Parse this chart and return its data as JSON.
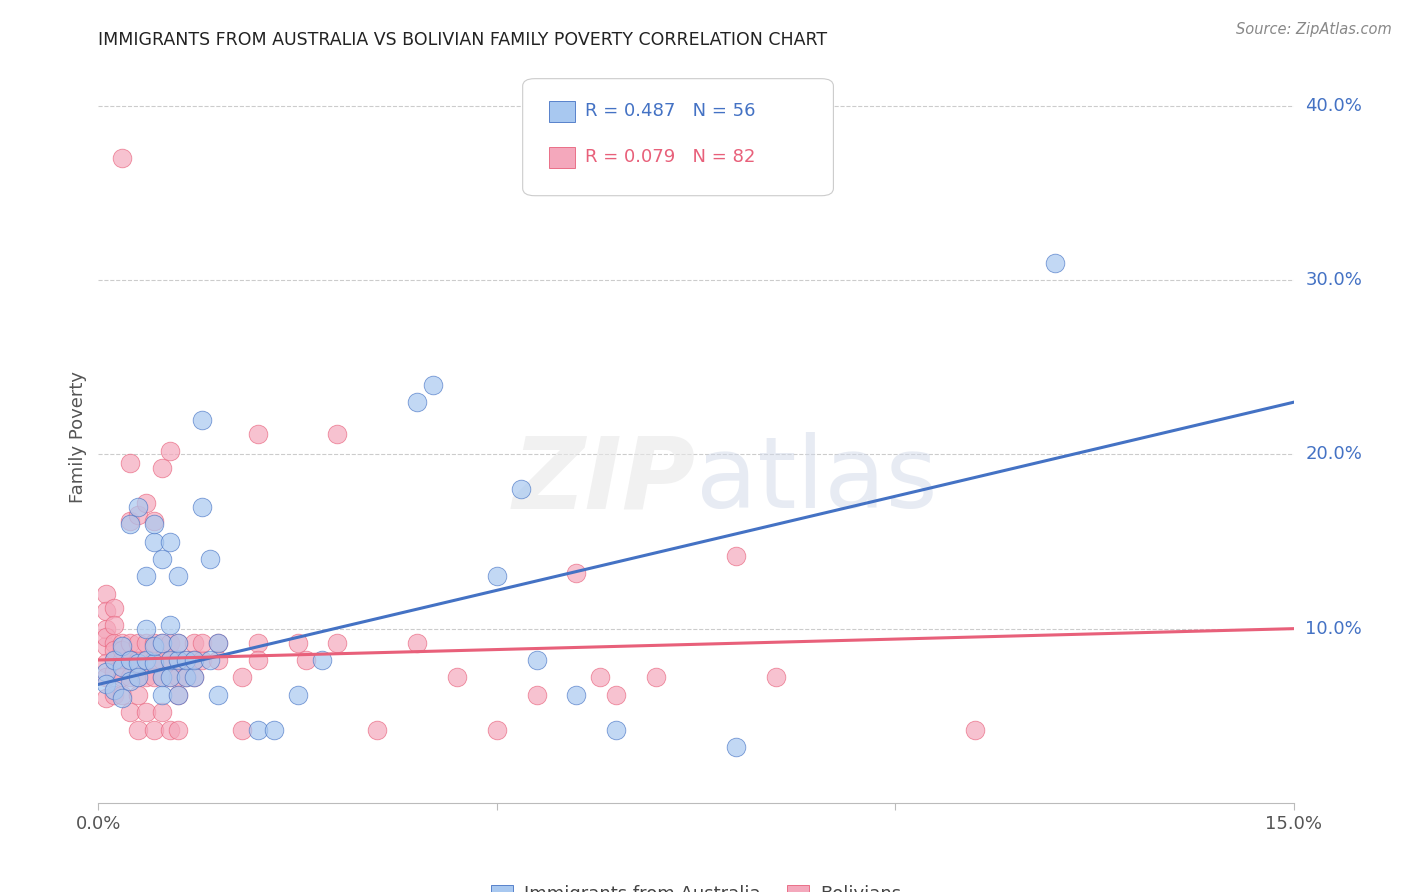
{
  "title": "IMMIGRANTS FROM AUSTRALIA VS BOLIVIAN FAMILY POVERTY CORRELATION CHART",
  "source": "Source: ZipAtlas.com",
  "ylabel": "Family Poverty",
  "right_yticks": [
    "40.0%",
    "30.0%",
    "20.0%",
    "10.0%"
  ],
  "right_ytick_vals": [
    0.4,
    0.3,
    0.2,
    0.1
  ],
  "xlim": [
    0.0,
    0.15
  ],
  "ylim": [
    0.0,
    0.42
  ],
  "color_australia": "#A8C8F0",
  "color_bolivia": "#F4A8BC",
  "line_color_australia": "#4472C4",
  "line_color_bolivia": "#E8607A",
  "watermark": "ZIPatlas",
  "australia_points": [
    [
      0.001,
      0.075
    ],
    [
      0.001,
      0.068
    ],
    [
      0.002,
      0.082
    ],
    [
      0.002,
      0.065
    ],
    [
      0.003,
      0.06
    ],
    [
      0.003,
      0.09
    ],
    [
      0.003,
      0.078
    ],
    [
      0.004,
      0.07
    ],
    [
      0.004,
      0.16
    ],
    [
      0.004,
      0.082
    ],
    [
      0.005,
      0.17
    ],
    [
      0.005,
      0.08
    ],
    [
      0.005,
      0.072
    ],
    [
      0.006,
      0.082
    ],
    [
      0.006,
      0.1
    ],
    [
      0.006,
      0.13
    ],
    [
      0.007,
      0.08
    ],
    [
      0.007,
      0.09
    ],
    [
      0.007,
      0.15
    ],
    [
      0.007,
      0.16
    ],
    [
      0.008,
      0.072
    ],
    [
      0.008,
      0.062
    ],
    [
      0.008,
      0.092
    ],
    [
      0.008,
      0.14
    ],
    [
      0.009,
      0.072
    ],
    [
      0.009,
      0.082
    ],
    [
      0.009,
      0.102
    ],
    [
      0.009,
      0.15
    ],
    [
      0.01,
      0.062
    ],
    [
      0.01,
      0.082
    ],
    [
      0.01,
      0.092
    ],
    [
      0.01,
      0.13
    ],
    [
      0.011,
      0.072
    ],
    [
      0.011,
      0.082
    ],
    [
      0.012,
      0.072
    ],
    [
      0.012,
      0.082
    ],
    [
      0.013,
      0.17
    ],
    [
      0.013,
      0.22
    ],
    [
      0.014,
      0.082
    ],
    [
      0.014,
      0.14
    ],
    [
      0.015,
      0.062
    ],
    [
      0.015,
      0.092
    ],
    [
      0.02,
      0.042
    ],
    [
      0.022,
      0.042
    ],
    [
      0.025,
      0.062
    ],
    [
      0.028,
      0.082
    ],
    [
      0.04,
      0.23
    ],
    [
      0.042,
      0.24
    ],
    [
      0.05,
      0.13
    ],
    [
      0.053,
      0.18
    ],
    [
      0.055,
      0.082
    ],
    [
      0.06,
      0.062
    ],
    [
      0.065,
      0.042
    ],
    [
      0.08,
      0.032
    ],
    [
      0.12,
      0.31
    ]
  ],
  "bolivia_points": [
    [
      0.001,
      0.12
    ],
    [
      0.001,
      0.09
    ],
    [
      0.001,
      0.08
    ],
    [
      0.001,
      0.072
    ],
    [
      0.001,
      0.1
    ],
    [
      0.001,
      0.11
    ],
    [
      0.001,
      0.06
    ],
    [
      0.001,
      0.095
    ],
    [
      0.002,
      0.112
    ],
    [
      0.002,
      0.082
    ],
    [
      0.002,
      0.092
    ],
    [
      0.002,
      0.062
    ],
    [
      0.002,
      0.102
    ],
    [
      0.002,
      0.075
    ],
    [
      0.002,
      0.088
    ],
    [
      0.003,
      0.082
    ],
    [
      0.003,
      0.092
    ],
    [
      0.003,
      0.072
    ],
    [
      0.003,
      0.062
    ],
    [
      0.003,
      0.37
    ],
    [
      0.003,
      0.088
    ],
    [
      0.004,
      0.092
    ],
    [
      0.004,
      0.082
    ],
    [
      0.004,
      0.072
    ],
    [
      0.004,
      0.162
    ],
    [
      0.004,
      0.052
    ],
    [
      0.004,
      0.195
    ],
    [
      0.005,
      0.072
    ],
    [
      0.005,
      0.082
    ],
    [
      0.005,
      0.092
    ],
    [
      0.005,
      0.062
    ],
    [
      0.005,
      0.042
    ],
    [
      0.005,
      0.165
    ],
    [
      0.006,
      0.082
    ],
    [
      0.006,
      0.072
    ],
    [
      0.006,
      0.092
    ],
    [
      0.006,
      0.052
    ],
    [
      0.006,
      0.172
    ],
    [
      0.007,
      0.082
    ],
    [
      0.007,
      0.092
    ],
    [
      0.007,
      0.072
    ],
    [
      0.007,
      0.162
    ],
    [
      0.007,
      0.042
    ],
    [
      0.008,
      0.082
    ],
    [
      0.008,
      0.072
    ],
    [
      0.008,
      0.092
    ],
    [
      0.008,
      0.192
    ],
    [
      0.008,
      0.052
    ],
    [
      0.009,
      0.082
    ],
    [
      0.009,
      0.072
    ],
    [
      0.009,
      0.092
    ],
    [
      0.009,
      0.042
    ],
    [
      0.009,
      0.202
    ],
    [
      0.01,
      0.092
    ],
    [
      0.01,
      0.082
    ],
    [
      0.01,
      0.072
    ],
    [
      0.01,
      0.062
    ],
    [
      0.01,
      0.042
    ],
    [
      0.011,
      0.072
    ],
    [
      0.011,
      0.082
    ],
    [
      0.012,
      0.092
    ],
    [
      0.012,
      0.082
    ],
    [
      0.012,
      0.072
    ],
    [
      0.013,
      0.082
    ],
    [
      0.013,
      0.092
    ],
    [
      0.015,
      0.092
    ],
    [
      0.015,
      0.082
    ],
    [
      0.018,
      0.072
    ],
    [
      0.018,
      0.042
    ],
    [
      0.02,
      0.092
    ],
    [
      0.02,
      0.082
    ],
    [
      0.02,
      0.212
    ],
    [
      0.025,
      0.092
    ],
    [
      0.026,
      0.082
    ],
    [
      0.03,
      0.092
    ],
    [
      0.03,
      0.212
    ],
    [
      0.035,
      0.042
    ],
    [
      0.04,
      0.092
    ],
    [
      0.045,
      0.072
    ],
    [
      0.05,
      0.042
    ],
    [
      0.055,
      0.062
    ],
    [
      0.06,
      0.132
    ],
    [
      0.063,
      0.072
    ],
    [
      0.065,
      0.062
    ],
    [
      0.07,
      0.072
    ],
    [
      0.08,
      0.142
    ],
    [
      0.085,
      0.072
    ],
    [
      0.11,
      0.042
    ]
  ],
  "aus_line_x": [
    0.0,
    0.15
  ],
  "aus_line_y": [
    0.068,
    0.23
  ],
  "bol_line_x": [
    0.0,
    0.15
  ],
  "bol_line_y": [
    0.082,
    0.1
  ]
}
